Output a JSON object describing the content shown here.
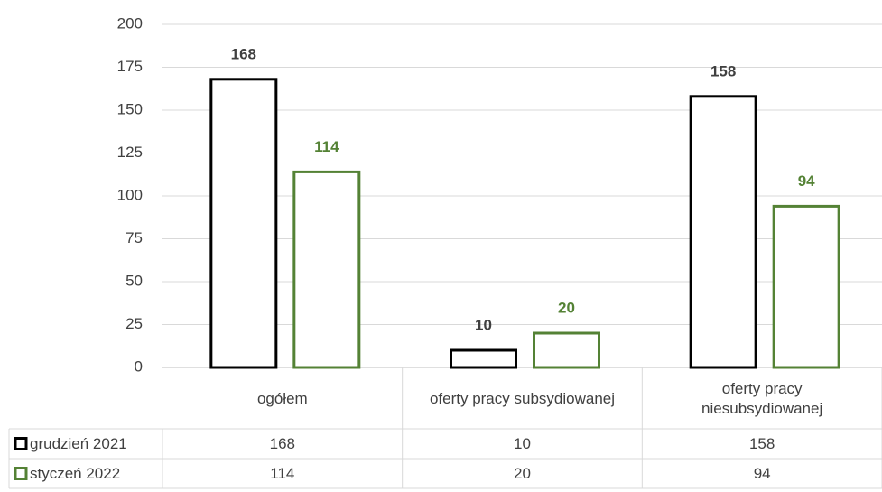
{
  "chart_data": {
    "type": "bar",
    "categories": [
      "ogółem",
      "oferty pracy subsydiowanej",
      "oferty pracy niesubsydiowanej"
    ],
    "series": [
      {
        "name": "grudzień 2021",
        "color": "#000000",
        "values": [
          168,
          10,
          158
        ]
      },
      {
        "name": "styczeń 2022",
        "color": "#548235",
        "values": [
          114,
          20,
          94
        ]
      }
    ],
    "ylim": [
      0,
      200
    ],
    "yticks": [
      0,
      25,
      50,
      75,
      100,
      125,
      150,
      175,
      200
    ],
    "grid": true
  }
}
